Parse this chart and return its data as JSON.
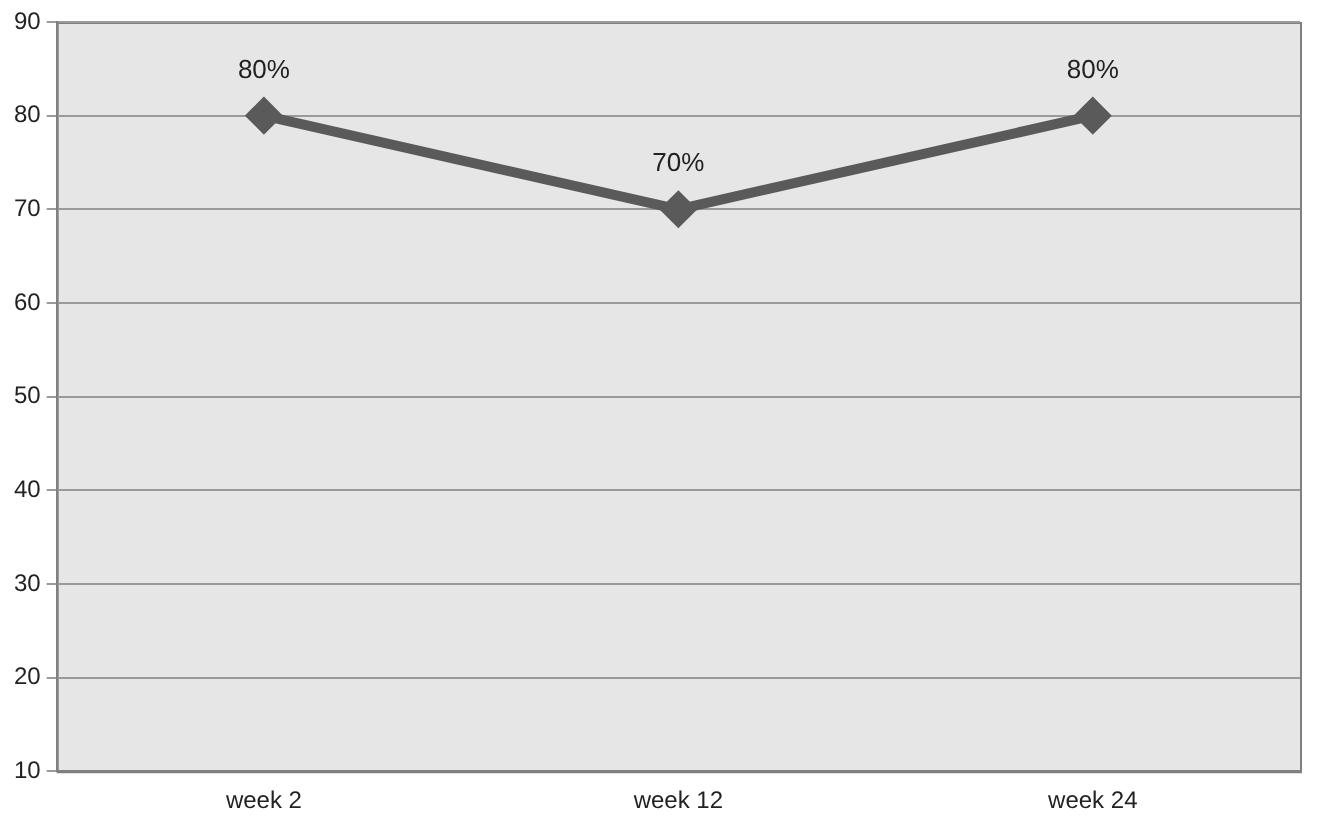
{
  "chart_data": {
    "type": "line",
    "categories": [
      "week 2",
      "week 12",
      "week 24"
    ],
    "series": [
      {
        "color": "#5a5a5a",
        "values": [
          80,
          70,
          80
        ],
        "value_labels": [
          "80%",
          "70%",
          "80%"
        ]
      }
    ],
    "ylim": [
      10,
      90
    ],
    "yticks": [
      10,
      20,
      30,
      40,
      50,
      60,
      70,
      80,
      90
    ],
    "grid": "y",
    "legend": false,
    "marker": "diamond",
    "line_style": "solid"
  }
}
